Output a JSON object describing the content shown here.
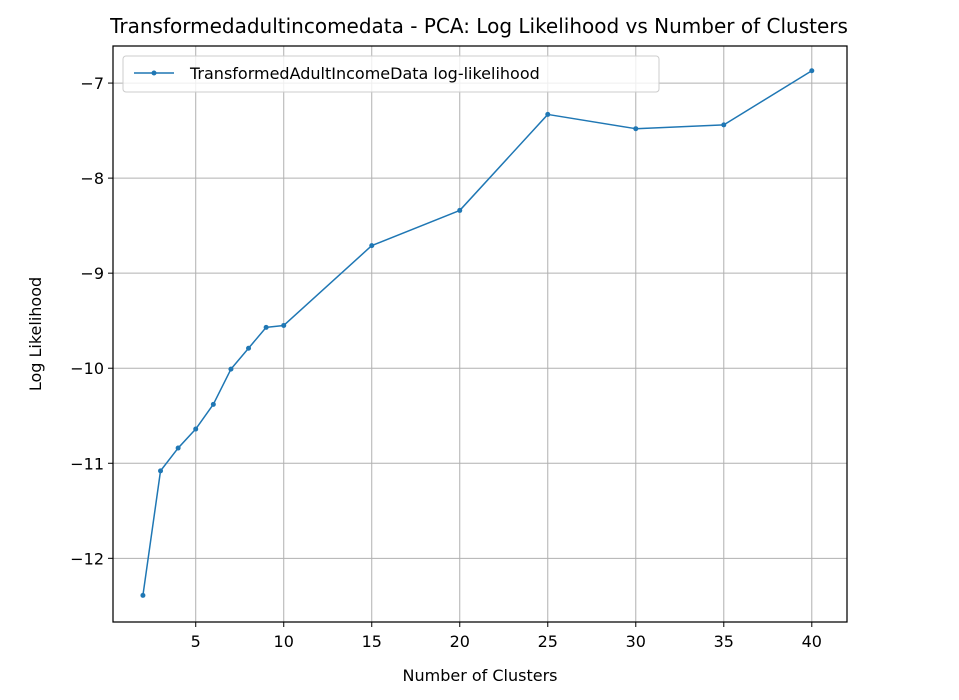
{
  "chart_data": {
    "type": "line",
    "title": "Transformedadultincomedata - PCA: Log Likelihood vs Number of Clusters",
    "xlabel": "Number of Clusters",
    "ylabel": "Log Likelihood",
    "xlim": [
      0.3,
      42.0
    ],
    "ylim": [
      -12.67,
      -6.61
    ],
    "xticks": [
      5,
      10,
      15,
      20,
      25,
      30,
      35,
      40
    ],
    "yticks": [
      -12,
      -11,
      -10,
      -9,
      -8,
      -7
    ],
    "xtick_labels": [
      "5",
      "10",
      "15",
      "20",
      "25",
      "30",
      "35",
      "40"
    ],
    "ytick_labels": [
      "−12",
      "−11",
      "−10",
      "−9",
      "−8",
      "−7"
    ],
    "grid": true,
    "legend_position": "upper-left",
    "series": [
      {
        "name": "TransformedAdultIncomeData log-likelihood",
        "color": "#1f77b4",
        "marker": "circle",
        "x": [
          2,
          3,
          4,
          5,
          6,
          7,
          8,
          9,
          10,
          15,
          20,
          25,
          30,
          35,
          40
        ],
        "y": [
          -12.39,
          -11.08,
          -10.84,
          -10.64,
          -10.38,
          -10.01,
          -9.79,
          -9.57,
          -9.55,
          -8.71,
          -8.34,
          -7.33,
          -7.48,
          -7.44,
          -6.87
        ]
      }
    ]
  }
}
